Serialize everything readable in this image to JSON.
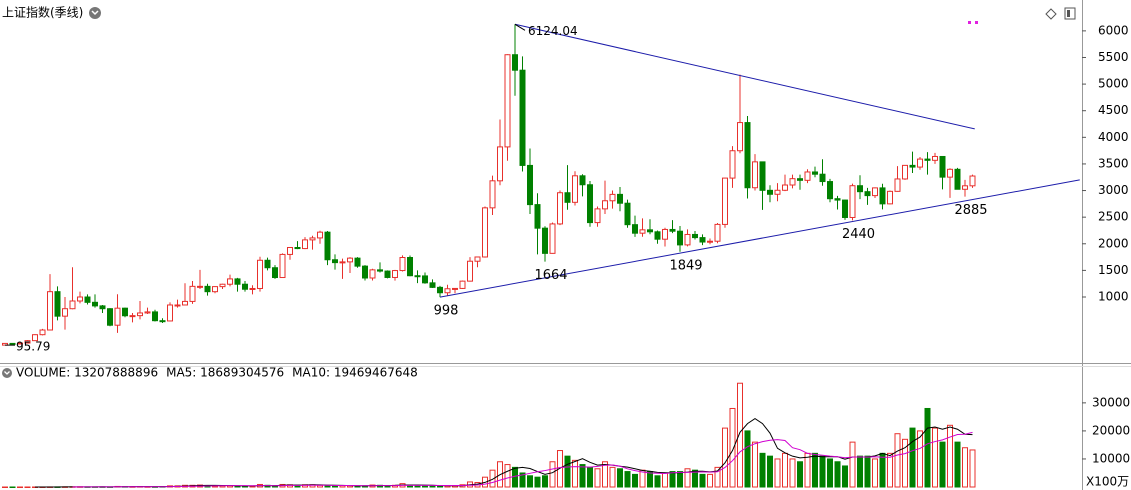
{
  "chart_data": {
    "type": "candlestick",
    "title": "上证指数(季线)",
    "up_color": "#e8302c",
    "down_color": "#008000",
    "ylim": [
      -240,
      6580
    ],
    "yticks": [
      1000,
      1500,
      2000,
      2500,
      3000,
      3500,
      4000,
      4500,
      5000,
      5500,
      6000
    ],
    "ohlc": [
      [
        96,
        128,
        95.79,
        128
      ],
      [
        128,
        135,
        105,
        120
      ],
      [
        120,
        140,
        110,
        135
      ],
      [
        135,
        190,
        130,
        180
      ],
      [
        180,
        300,
        175,
        292
      ],
      [
        292,
        400,
        280,
        380
      ],
      [
        380,
        1429,
        370,
        1100
      ],
      [
        1100,
        1200,
        560,
        640
      ],
      [
        640,
        1000,
        386,
        780
      ],
      [
        780,
        1558,
        770,
        925
      ],
      [
        925,
        1100,
        880,
        1000
      ],
      [
        1000,
        1050,
        860,
        900
      ],
      [
        900,
        1050,
        800,
        833
      ],
      [
        833,
        850,
        700,
        780
      ],
      [
        780,
        790,
        450,
        470
      ],
      [
        470,
        1052,
        325,
        790
      ],
      [
        790,
        800,
        620,
        648
      ],
      [
        648,
        700,
        524,
        650
      ],
      [
        650,
        926,
        580,
        700
      ],
      [
        700,
        800,
        680,
        720
      ],
      [
        720,
        760,
        540,
        555
      ],
      [
        555,
        600,
        512,
        550
      ],
      [
        550,
        900,
        540,
        850
      ],
      [
        850,
        950,
        800,
        850
      ],
      [
        850,
        1258,
        850,
        917
      ],
      [
        917,
        1300,
        870,
        1200
      ],
      [
        1200,
        1510,
        1150,
        1200
      ],
      [
        1200,
        1250,
        1025,
        1100
      ],
      [
        1100,
        1200,
        1070,
        1195
      ],
      [
        1195,
        1250,
        1150,
        1240
      ],
      [
        1240,
        1420,
        1200,
        1340
      ],
      [
        1340,
        1360,
        1100,
        1240
      ],
      [
        1240,
        1300,
        1100,
        1146
      ],
      [
        1146,
        1220,
        1050,
        1160
      ],
      [
        1160,
        1756,
        1100,
        1690
      ],
      [
        1690,
        1740,
        1500,
        1550
      ],
      [
        1550,
        1600,
        1340,
        1366
      ],
      [
        1366,
        1820,
        1360,
        1800
      ],
      [
        1800,
        1930,
        1700,
        1930
      ],
      [
        1930,
        2050,
        1900,
        1910
      ],
      [
        1910,
        2125,
        1900,
        2073
      ],
      [
        2073,
        2150,
        1890,
        2110
      ],
      [
        2110,
        2245,
        2000,
        2218
      ],
      [
        2218,
        2240,
        1600,
        1700
      ],
      [
        1700,
        1800,
        1514,
        1646
      ],
      [
        1646,
        1720,
        1340,
        1660
      ],
      [
        1660,
        1750,
        1450,
        1730
      ],
      [
        1730,
        1750,
        1550,
        1580
      ],
      [
        1580,
        1600,
        1310,
        1357
      ],
      [
        1357,
        1530,
        1310,
        1510
      ],
      [
        1510,
        1650,
        1460,
        1487
      ],
      [
        1487,
        1500,
        1350,
        1367
      ],
      [
        1367,
        1510,
        1307,
        1497
      ],
      [
        1497,
        1783,
        1480,
        1742
      ],
      [
        1742,
        1780,
        1390,
        1400
      ],
      [
        1400,
        1500,
        1260,
        1396
      ],
      [
        1396,
        1460,
        1250,
        1266
      ],
      [
        1266,
        1330,
        1170,
        1181
      ],
      [
        1181,
        1210,
        998,
        1080
      ],
      [
        1080,
        1230,
        1020,
        1155
      ],
      [
        1155,
        1170,
        1070,
        1161
      ],
      [
        1161,
        1310,
        1150,
        1298
      ],
      [
        1298,
        1750,
        1290,
        1672
      ],
      [
        1672,
        1760,
        1560,
        1752
      ],
      [
        1752,
        2700,
        1740,
        2675
      ],
      [
        2675,
        3280,
        2540,
        3183
      ],
      [
        3183,
        4335,
        3100,
        3820
      ],
      [
        3820,
        5560,
        3560,
        5552
      ],
      [
        5552,
        6124.04,
        4780,
        5261
      ],
      [
        5261,
        5520,
        3357,
        3472
      ],
      [
        3472,
        3790,
        2560,
        2736
      ],
      [
        2736,
        2950,
        1800,
        2293
      ],
      [
        2293,
        2330,
        1664,
        1820
      ],
      [
        1820,
        2400,
        1814,
        2373
      ],
      [
        2373,
        3000,
        2350,
        2959
      ],
      [
        2959,
        3478,
        2640,
        2779
      ],
      [
        2779,
        3362,
        2720,
        3277
      ],
      [
        3277,
        3306,
        2890,
        3109
      ],
      [
        3109,
        3180,
        2320,
        2398
      ],
      [
        2398,
        2700,
        2320,
        2656
      ],
      [
        2656,
        3186,
        2560,
        2808
      ],
      [
        2808,
        3000,
        2660,
        2928
      ],
      [
        2928,
        3067,
        2610,
        2762
      ],
      [
        2762,
        2830,
        2300,
        2359
      ],
      [
        2359,
        2530,
        2130,
        2199
      ],
      [
        2199,
        2478,
        2132,
        2262
      ],
      [
        2262,
        2460,
        2180,
        2225
      ],
      [
        2225,
        2250,
        2000,
        2086
      ],
      [
        2086,
        2300,
        1949,
        2269
      ],
      [
        2269,
        2445,
        2200,
        2236
      ],
      [
        2236,
        2335,
        1849,
        1979
      ],
      [
        1979,
        2270,
        1950,
        2175
      ],
      [
        2175,
        2240,
        2080,
        2116
      ],
      [
        2116,
        2177,
        1975,
        2033
      ],
      [
        2033,
        2100,
        1991,
        2048
      ],
      [
        2048,
        2390,
        2010,
        2364
      ],
      [
        2364,
        3240,
        2300,
        3234
      ],
      [
        3234,
        3835,
        3050,
        3748
      ],
      [
        3748,
        5178,
        3700,
        4277
      ],
      [
        4277,
        4400,
        2850,
        3053
      ],
      [
        3053,
        3684,
        3000,
        3539
      ],
      [
        3539,
        3540,
        2638,
        3004
      ],
      [
        3004,
        3100,
        2780,
        2930
      ],
      [
        2930,
        3140,
        2800,
        3005
      ],
      [
        3005,
        3300,
        2990,
        3104
      ],
      [
        3104,
        3300,
        3040,
        3223
      ],
      [
        3223,
        3300,
        3016,
        3192
      ],
      [
        3192,
        3400,
        3140,
        3349
      ],
      [
        3349,
        3450,
        3250,
        3307
      ],
      [
        3307,
        3587,
        3090,
        3169
      ],
      [
        3169,
        3220,
        2780,
        2847
      ],
      [
        2847,
        2900,
        2644,
        2821
      ],
      [
        2821,
        2830,
        2449,
        2494
      ],
      [
        2494,
        3130,
        2440,
        3091
      ],
      [
        3091,
        3288,
        2840,
        2979
      ],
      [
        2979,
        3050,
        2730,
        2905
      ],
      [
        2905,
        3060,
        2860,
        3050
      ],
      [
        3050,
        3127,
        2646,
        2750
      ],
      [
        2750,
        3000,
        2740,
        2985
      ],
      [
        2985,
        3458,
        2980,
        3218
      ],
      [
        3218,
        3474,
        3200,
        3473
      ],
      [
        3473,
        3731,
        3330,
        3441
      ],
      [
        3441,
        3630,
        3390,
        3591
      ],
      [
        3591,
        3723,
        3300,
        3568
      ],
      [
        3568,
        3708,
        3500,
        3640
      ],
      [
        3640,
        3650,
        3023,
        3252
      ],
      [
        3252,
        3420,
        2863,
        3399
      ],
      [
        3399,
        3425,
        3020,
        3024
      ],
      [
        3024,
        3200,
        2885,
        3089
      ],
      [
        3089,
        3300,
        3050,
        3273
      ]
    ],
    "annotations": [
      {
        "value": 6124.04,
        "index": 68
      },
      {
        "value": 95.79,
        "index": 0
      },
      {
        "value": 998,
        "index": 58
      },
      {
        "value": 1664,
        "index": 72
      },
      {
        "value": 1849,
        "index": 90
      },
      {
        "value": 2440,
        "index": 113
      },
      {
        "value": 2885,
        "index": 128
      }
    ],
    "trendlines": [
      {
        "x": [
          68,
          129.3
        ],
        "y": [
          6124.04,
          4158
        ],
        "color": "#1c1caa"
      },
      {
        "x": [
          58,
          143.3
        ],
        "y": [
          998,
          3200
        ],
        "color": "#1c1caa"
      }
    ],
    "volume_panel": {
      "header": [
        {
          "text": "VOLUME: 13207888896",
          "color": "#000"
        },
        {
          "text": "MA5: 18689304576",
          "color": "#000"
        },
        {
          "text": "MA10: 19469467648",
          "color": "#c000c0"
        }
      ],
      "unit": "X100万",
      "ylim": [
        0,
        43500
      ],
      "yticks": [
        10000,
        20000,
        30000
      ],
      "values": [
        1,
        2,
        2,
        3,
        5,
        10,
        30,
        40,
        50,
        80,
        80,
        60,
        60,
        60,
        50,
        200,
        150,
        100,
        150,
        100,
        80,
        150,
        400,
        400,
        600,
        600,
        700,
        500,
        400,
        500,
        500,
        400,
        300,
        300,
        900,
        600,
        400,
        900,
        800,
        700,
        800,
        800,
        600,
        500,
        400,
        500,
        500,
        400,
        400,
        700,
        600,
        500,
        600,
        1200,
        700,
        500,
        400,
        400,
        400,
        500,
        500,
        800,
        1800,
        1600,
        3500,
        6000,
        9000,
        8000,
        7000,
        5000,
        4000,
        3500,
        4000,
        9000,
        13000,
        11000,
        9500,
        8000,
        7000,
        6500,
        9000,
        7000,
        6500,
        5500,
        4500,
        6000,
        5500,
        4000,
        5000,
        5500,
        5500,
        6500,
        6000,
        4500,
        4500,
        7000,
        21000,
        28000,
        37000,
        20000,
        16000,
        12000,
        11000,
        10000,
        12000,
        10000,
        9000,
        12000,
        12000,
        11000,
        10000,
        9000,
        7500,
        16000,
        11000,
        11000,
        10000,
        12000,
        12000,
        19000,
        17000,
        21000,
        20000,
        28000,
        21000,
        16000,
        22000,
        16000,
        14000,
        13208
      ],
      "series": [
        {
          "name": "MA5",
          "color": "#000000",
          "values": [
            null,
            null,
            null,
            null,
            3,
            4,
            10,
            18,
            27,
            42,
            56,
            62,
            66,
            68,
            62,
            86,
            104,
            114,
            130,
            140,
            116,
            116,
            176,
            226,
            326,
            430,
            540,
            560,
            560,
            540,
            520,
            460,
            420,
            400,
            480,
            500,
            500,
            620,
            720,
            680,
            720,
            800,
            740,
            680,
            620,
            560,
            500,
            460,
            440,
            500,
            520,
            520,
            560,
            720,
            720,
            700,
            680,
            640,
            480,
            440,
            440,
            460,
            800,
            1040,
            1640,
            2740,
            4380,
            5620,
            6700,
            7000,
            6600,
            5500,
            4500,
            5100,
            6700,
            8100,
            9100,
            10100,
            8800,
            7800,
            8000,
            7800,
            7400,
            7100,
            6500,
            5900,
            5600,
            5200,
            5100,
            5100,
            5100,
            5300,
            5600,
            5600,
            5400,
            5700,
            8600,
            13000,
            19500,
            22600,
            24400,
            22600,
            19200,
            13800,
            12200,
            11000,
            10400,
            10600,
            11000,
            10800,
            10800,
            10800,
            9900,
            10700,
            10700,
            10700,
            11100,
            12000,
            11200,
            12800,
            14000,
            16200,
            17800,
            21000,
            21400,
            20600,
            21400,
            20600,
            18800,
            18689
          ]
        },
        {
          "name": "MA10",
          "color": "#d000d0",
          "values": [
            null,
            null,
            null,
            null,
            null,
            null,
            null,
            null,
            null,
            19,
            30,
            36,
            42,
            47,
            52,
            74,
            83,
            90,
            99,
            101,
            101,
            110,
            145,
            178,
            233,
            273,
            328,
            368,
            393,
            433,
            468,
            493,
            483,
            453,
            483,
            483,
            453,
            503,
            563,
            583,
            593,
            613,
            643,
            603,
            553,
            543,
            553,
            503,
            463,
            463,
            473,
            473,
            493,
            573,
            593,
            593,
            583,
            573,
            553,
            533,
            523,
            513,
            613,
            733,
            1043,
            1603,
            2453,
            3213,
            3833,
            4333,
            4883,
            5443,
            5863,
            6403,
            6953,
            7123,
            7283,
            7183,
            7083,
            7333,
            7733,
            7843,
            7443,
            6483,
            5833,
            5333,
            4983,
            4883,
            4833,
            5083,
            5233,
            5233,
            5283,
            5383,
            5283,
            5433,
            6973,
            9373,
            12523,
            14373,
            15433,
            16173,
            16673,
            16873,
            16573,
            14000,
            13300,
            12000,
            11600,
            11300,
            11000,
            10800,
            10450,
            10650,
            10750,
            10650,
            10800,
            10600,
            10600,
            11400,
            11900,
            12950,
            13750,
            15400,
            16200,
            16800,
            17800,
            18700,
            18800,
            19469
          ]
        }
      ]
    }
  }
}
